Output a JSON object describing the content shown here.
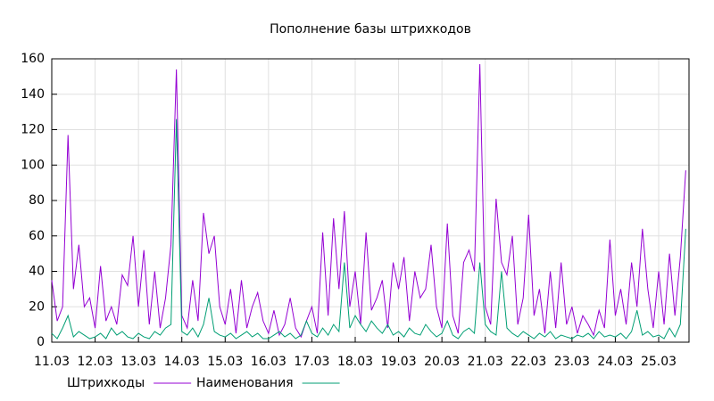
{
  "chart_data": {
    "type": "line",
    "title": "Пополнение базы штрихкодов",
    "x": [
      0,
      0.125,
      0.25,
      0.375,
      0.5,
      0.625,
      0.75,
      0.875,
      1,
      1.125,
      1.25,
      1.375,
      1.5,
      1.625,
      1.75,
      1.875,
      2,
      2.125,
      2.25,
      2.375,
      2.5,
      2.625,
      2.75,
      2.875,
      3,
      3.125,
      3.25,
      3.375,
      3.5,
      3.625,
      3.75,
      3.875,
      4,
      4.125,
      4.25,
      4.375,
      4.5,
      4.625,
      4.75,
      4.875,
      5,
      5.125,
      5.25,
      5.375,
      5.5,
      5.625,
      5.75,
      5.875,
      6,
      6.125,
      6.25,
      6.375,
      6.5,
      6.625,
      6.75,
      6.875,
      7,
      7.125,
      7.25,
      7.375,
      7.5,
      7.625,
      7.75,
      7.875,
      8,
      8.125,
      8.25,
      8.375,
      8.5,
      8.625,
      8.75,
      8.875,
      9,
      9.125,
      9.25,
      9.375,
      9.5,
      9.625,
      9.75,
      9.875,
      10,
      10.125,
      10.25,
      10.375,
      10.5,
      10.625,
      10.75,
      10.875,
      11,
      11.125,
      11.25,
      11.375,
      11.5,
      11.625,
      11.75,
      11.875,
      12,
      12.125,
      12.25,
      12.375,
      12.5,
      12.625,
      12.75,
      12.875,
      13,
      13.125,
      13.25,
      13.375,
      13.5,
      13.625,
      13.75,
      13.875,
      14,
      14.125,
      14.25,
      14.375,
      14.5,
      14.625
    ],
    "series": [
      {
        "name": "Штрихкоды",
        "color": "#9400d3",
        "values": [
          35,
          12,
          20,
          117,
          30,
          55,
          20,
          25,
          8,
          43,
          12,
          20,
          10,
          38,
          32,
          60,
          20,
          52,
          10,
          40,
          8,
          25,
          55,
          154,
          15,
          8,
          35,
          12,
          73,
          50,
          60,
          20,
          10,
          30,
          5,
          35,
          8,
          20,
          28,
          12,
          5,
          18,
          4,
          10,
          25,
          8,
          3,
          12,
          20,
          5,
          62,
          15,
          70,
          30,
          74,
          20,
          40,
          10,
          62,
          18,
          25,
          35,
          8,
          45,
          30,
          48,
          12,
          40,
          25,
          30,
          55,
          20,
          8,
          67,
          15,
          5,
          45,
          52,
          40,
          157,
          20,
          10,
          81,
          45,
          38,
          60,
          10,
          25,
          72,
          15,
          30,
          5,
          40,
          8,
          45,
          10,
          20,
          5,
          15,
          10,
          4,
          18,
          8,
          58,
          15,
          30,
          10,
          45,
          20,
          64,
          30,
          8,
          40,
          10,
          50,
          15,
          48,
          97
        ]
      },
      {
        "name": "Наименования",
        "color": "#009e73",
        "values": [
          5,
          2,
          8,
          15,
          3,
          6,
          4,
          2,
          3,
          5,
          2,
          8,
          4,
          6,
          3,
          2,
          5,
          3,
          2,
          6,
          4,
          8,
          10,
          126,
          6,
          4,
          8,
          3,
          10,
          25,
          6,
          4,
          3,
          5,
          2,
          4,
          6,
          3,
          5,
          2,
          2,
          4,
          6,
          3,
          5,
          2,
          4,
          12,
          5,
          3,
          8,
          4,
          10,
          6,
          45,
          8,
          15,
          10,
          6,
          12,
          8,
          5,
          10,
          4,
          6,
          3,
          8,
          5,
          4,
          10,
          6,
          3,
          5,
          12,
          4,
          2,
          6,
          8,
          5,
          45,
          10,
          6,
          4,
          40,
          8,
          5,
          3,
          6,
          4,
          2,
          5,
          3,
          6,
          2,
          4,
          3,
          2,
          4,
          3,
          5,
          2,
          6,
          3,
          4,
          3,
          5,
          2,
          6,
          18,
          4,
          6,
          3,
          4,
          2,
          8,
          3,
          10,
          64
        ]
      }
    ],
    "xlim": [
      0,
      14.7
    ],
    "xticks": [
      {
        "value": 0,
        "label": "11.03"
      },
      {
        "value": 1,
        "label": "12.03"
      },
      {
        "value": 2,
        "label": "13.03"
      },
      {
        "value": 3,
        "label": "14.03"
      },
      {
        "value": 4,
        "label": "15.03"
      },
      {
        "value": 5,
        "label": "16.03"
      },
      {
        "value": 6,
        "label": "17.03"
      },
      {
        "value": 7,
        "label": "18.03"
      },
      {
        "value": 8,
        "label": "19.03"
      },
      {
        "value": 9,
        "label": "20.03"
      },
      {
        "value": 10,
        "label": "21.03"
      },
      {
        "value": 11,
        "label": "22.03"
      },
      {
        "value": 12,
        "label": "23.03"
      },
      {
        "value": 13,
        "label": "24.03"
      },
      {
        "value": 14,
        "label": "25.03"
      }
    ],
    "ylim": [
      0,
      160
    ],
    "yticks": [
      0,
      20,
      40,
      60,
      80,
      100,
      120,
      140,
      160
    ],
    "grid": true
  }
}
